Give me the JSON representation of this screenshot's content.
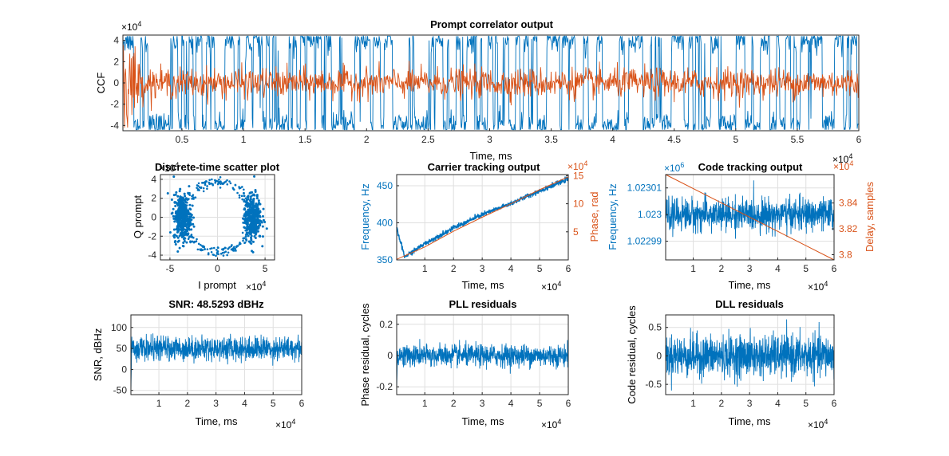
{
  "colors": {
    "blue": "#0072BD",
    "orange": "#D95319",
    "axis": "#262626",
    "grid": "#DFDFDF"
  },
  "panels": {
    "prompt": {
      "title": "Prompt correlator output",
      "ylabel": "CCF",
      "xlabel": "Time, ms",
      "y_exponent": "4",
      "x_exponent": "4",
      "yticks": [
        "4",
        "2",
        "0",
        "-2",
        "-4"
      ],
      "xticks": [
        "0.5",
        "1",
        "1.5",
        "2",
        "2.5",
        "3",
        "3.5",
        "4",
        "4.5",
        "5",
        "5.5",
        "6"
      ]
    },
    "scatter": {
      "title": "Discrete-time scatter plot",
      "ylabel": "Q prompt",
      "xlabel": "I prompt",
      "y_exponent": "4",
      "x_exponent": "4",
      "yticks": [
        "4",
        "2",
        "0",
        "-2",
        "-4"
      ],
      "xticks": [
        "-5",
        "0",
        "5"
      ]
    },
    "carrier": {
      "title": "Carrier tracking output",
      "ylabel_left": "Frequency, Hz",
      "ylabel_right": "Phase, rad",
      "xlabel": "Time, ms",
      "x_exponent": "4",
      "right_exponent": "4",
      "yticks_left": [
        "450",
        "400",
        "350"
      ],
      "yticks_right": [
        "15",
        "10",
        "5"
      ],
      "xticks": [
        "1",
        "2",
        "3",
        "4",
        "5",
        "6"
      ]
    },
    "code": {
      "title": "Code tracking output",
      "ylabel_left": "Frequency, Hz",
      "ylabel_right": "Delay, samples",
      "xlabel": "Time, ms",
      "x_exponent": "4",
      "left_exponent": "6",
      "right_exponent": "4",
      "yticks_left": [
        "1.02301",
        "1.023",
        "1.02299"
      ],
      "yticks_right": [
        "3.84",
        "3.82",
        "3.8"
      ],
      "xticks": [
        "1",
        "2",
        "3",
        "4",
        "5",
        "6"
      ]
    },
    "snr": {
      "title": "SNR: 48.5293 dBHz",
      "ylabel": "SNR, dBHz",
      "xlabel": "Time, ms",
      "x_exponent": "4",
      "yticks": [
        "100",
        "50",
        "0",
        "-50"
      ],
      "xticks": [
        "1",
        "2",
        "3",
        "4",
        "5",
        "6"
      ]
    },
    "pll": {
      "title": "PLL residuals",
      "ylabel": "Phase residual, cycles",
      "xlabel": "Time, ms",
      "x_exponent": "4",
      "yticks": [
        "0.2",
        "0",
        "-0.2"
      ],
      "xticks": [
        "1",
        "2",
        "3",
        "4",
        "5",
        "6"
      ]
    },
    "dll": {
      "title": "DLL residuals",
      "ylabel": "Code residual, cycles",
      "xlabel": "Time, ms",
      "x_exponent": "4",
      "yticks": [
        "0.5",
        "0",
        "-0.5"
      ],
      "xticks": [
        "1",
        "2",
        "3",
        "4",
        "5",
        "6"
      ]
    }
  },
  "chart_data": [
    {
      "id": "prompt",
      "type": "line",
      "title": "Prompt correlator output",
      "xlabel": "Time, ms",
      "ylabel": "CCF",
      "x_scale": "x10^4",
      "y_scale": "x10^4",
      "xlim": [
        0.02,
        6.0
      ],
      "ylim": [
        -4.5,
        4.5
      ],
      "series": [
        {
          "color": "#0072BD",
          "note_values": "in-phase, switches between about +4 and -4 (x10^4)",
          "level": 4.0,
          "noise": 0.6
        },
        {
          "color": "#D95319",
          "note_values": "quadrature, around 0 with amplitude about 1 (x10^4)",
          "level": 0.0,
          "noise": 0.7
        }
      ]
    },
    {
      "id": "scatter",
      "type": "scatter",
      "title": "Discrete-time scatter plot",
      "xlabel": "I prompt",
      "ylabel": "Q prompt",
      "x_scale": "x10^4",
      "y_scale": "x10^4",
      "xlim": [
        -6,
        6
      ],
      "ylim": [
        -4.5,
        4.5
      ],
      "clusters": [
        {
          "cx": -3.7,
          "cy": 0.0,
          "sx": 0.45,
          "sy": 1.2
        },
        {
          "cx": 3.7,
          "cy": 0.0,
          "sx": 0.45,
          "sy": 1.2
        }
      ]
    },
    {
      "id": "carrier",
      "type": "line",
      "title": "Carrier tracking output",
      "xlabel": "Time, ms",
      "x_scale": "x10^4",
      "xlim": [
        0.02,
        6.0
      ],
      "left_axis": {
        "label": "Frequency, Hz",
        "ylim": [
          350,
          465
        ]
      },
      "right_axis": {
        "label": "Phase, rad",
        "scale": "x10^4",
        "ylim": [
          0,
          15.2
        ]
      },
      "series": [
        {
          "axis": "left",
          "color": "#0072BD",
          "x": [
            0.02,
            0.3,
            1,
            2,
            3,
            4,
            5,
            6
          ],
          "y": [
            392,
            354,
            372,
            393,
            411,
            426,
            443,
            459
          ]
        },
        {
          "axis": "right",
          "color": "#D95319",
          "x": [
            0.02,
            1,
            2,
            3,
            4,
            5,
            6
          ],
          "y": [
            0.1,
            2.3,
            5.1,
            7.6,
            10.0,
            12.5,
            14.8
          ]
        }
      ]
    },
    {
      "id": "code",
      "type": "line",
      "title": "Code tracking output",
      "xlabel": "Time, ms",
      "x_scale": "x10^4",
      "xlim": [
        0.02,
        6.0
      ],
      "left_axis": {
        "label": "Frequency, Hz",
        "scale": "x10^6",
        "ylim": [
          1.022983,
          1.023015
        ],
        "center": 1.023,
        "noise": 3e-06
      },
      "right_axis": {
        "label": "Delay, samples",
        "scale": "x10^4",
        "ylim": [
          3.796,
          3.862
        ]
      },
      "series": [
        {
          "axis": "left",
          "color": "#0072BD",
          "note_values": "noise around 1.023 x10^6"
        },
        {
          "axis": "right",
          "color": "#D95319",
          "x": [
            0.02,
            6.0
          ],
          "y": [
            3.862,
            3.796
          ]
        }
      ]
    },
    {
      "id": "snr",
      "type": "line",
      "title": "SNR: 48.5293 dBHz",
      "xlabel": "Time, ms",
      "ylabel": "SNR, dBHz",
      "x_scale": "x10^4",
      "xlim": [
        0.02,
        6.0
      ],
      "ylim": [
        -60,
        130
      ],
      "series": [
        {
          "color": "#0072BD",
          "mean": 50,
          "noise": 14,
          "initial_dip": -55
        }
      ]
    },
    {
      "id": "pll",
      "type": "line",
      "title": "PLL residuals",
      "xlabel": "Time, ms",
      "ylabel": "Phase residual, cycles",
      "x_scale": "x10^4",
      "xlim": [
        0.02,
        6.0
      ],
      "ylim": [
        -0.25,
        0.26
      ],
      "series": [
        {
          "color": "#0072BD",
          "mean": 0.0,
          "noise": 0.035,
          "initial_dip": -0.22
        }
      ]
    },
    {
      "id": "dll",
      "type": "line",
      "title": "DLL residuals",
      "xlabel": "Time, ms",
      "ylabel": "Code residual, cycles",
      "x_scale": "x10^4",
      "xlim": [
        0.02,
        6.0
      ],
      "ylim": [
        -0.68,
        0.72
      ],
      "series": [
        {
          "color": "#0072BD",
          "mean": 0.0,
          "noise": 0.18
        }
      ]
    }
  ]
}
